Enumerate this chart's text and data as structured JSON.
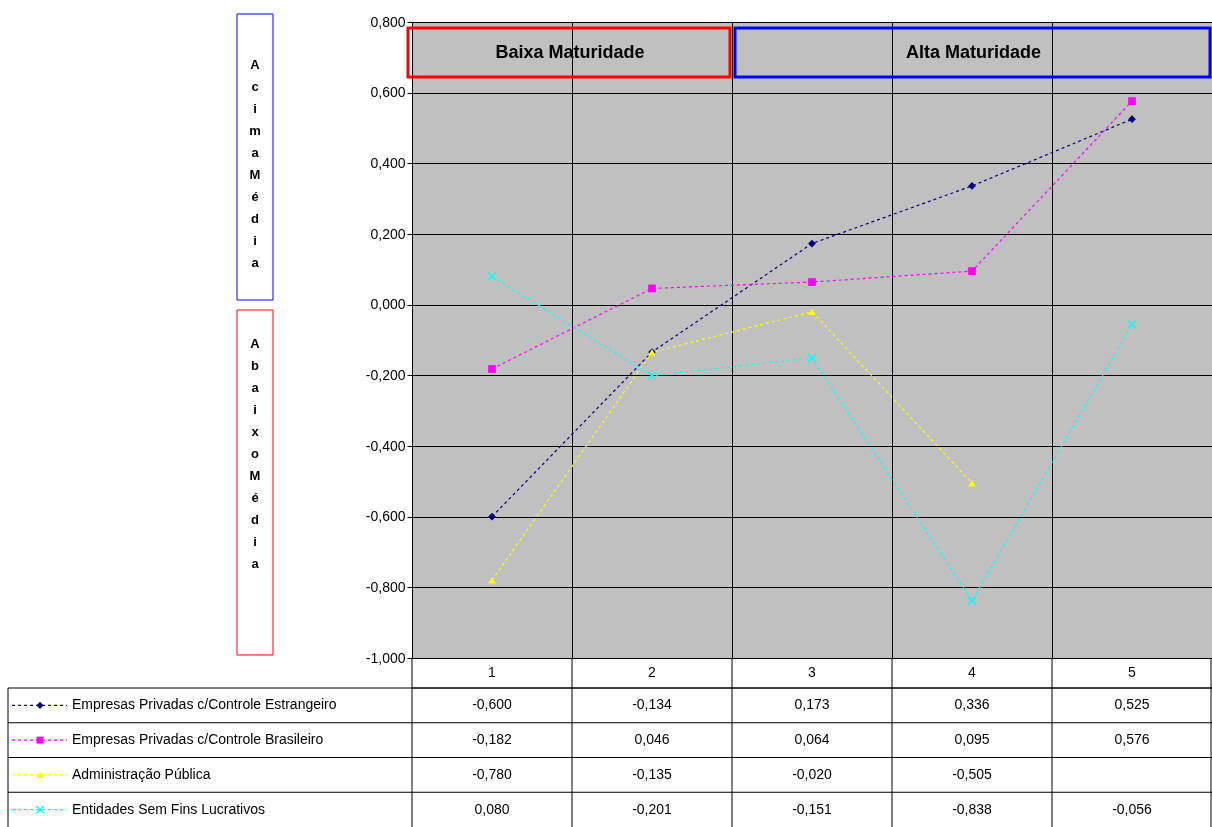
{
  "chart_data": {
    "type": "line",
    "categories": [
      "1",
      "2",
      "3",
      "4",
      "5"
    ],
    "series": [
      {
        "name": "Empresas Privadas c/Controle Estrangeiro",
        "color": "#000080",
        "marker": "diamond",
        "values": [
          -0.6,
          -0.134,
          0.173,
          0.336,
          0.525
        ],
        "value_labels": [
          "-0,600",
          "-0,134",
          "0,173",
          "0,336",
          "0,525"
        ]
      },
      {
        "name": "Empresas Privadas c/Controle Brasileiro",
        "color": "#ff00ff",
        "marker": "square",
        "values": [
          -0.182,
          0.046,
          0.064,
          0.095,
          0.576
        ],
        "value_labels": [
          "-0,182",
          "0,046",
          "0,064",
          "0,095",
          "0,576"
        ]
      },
      {
        "name": "Administração Pública",
        "color": "#ffff00",
        "marker": "triangle",
        "values": [
          -0.78,
          -0.135,
          -0.02,
          -0.505,
          null
        ],
        "value_labels": [
          "-0,780",
          "-0,135",
          "-0,020",
          "-0,505",
          null
        ]
      },
      {
        "name": "Entidades Sem Fins Lucrativos",
        "color": "#00ffff",
        "marker": "cross",
        "values": [
          0.08,
          -0.201,
          -0.151,
          -0.838,
          -0.056
        ],
        "value_labels": [
          "0,080",
          "-0,201",
          "-0,151",
          "-0,838",
          "-0,056"
        ]
      }
    ],
    "ylim": [
      -1,
      0.8
    ],
    "yticks": [
      {
        "value": -1,
        "label": "-1,000"
      },
      {
        "value": -0.8,
        "label": "-0,800"
      },
      {
        "value": -0.6,
        "label": "-0,600"
      },
      {
        "value": -0.4,
        "label": "-0,400"
      },
      {
        "value": -0.2,
        "label": "-0,200"
      },
      {
        "value": 0,
        "label": "0,000"
      },
      {
        "value": 0.2,
        "label": "0,200"
      },
      {
        "value": 0.4,
        "label": "0,400"
      },
      {
        "value": 0.6,
        "label": "0,600"
      },
      {
        "value": 0.8,
        "label": "0,800"
      }
    ],
    "grid": true,
    "legend": "bottom",
    "line_style": "dashed",
    "annotations": [
      "Baixa Maturidade",
      "Alta Maturidade",
      "Acima Média",
      "Abaixo Média"
    ]
  }
}
